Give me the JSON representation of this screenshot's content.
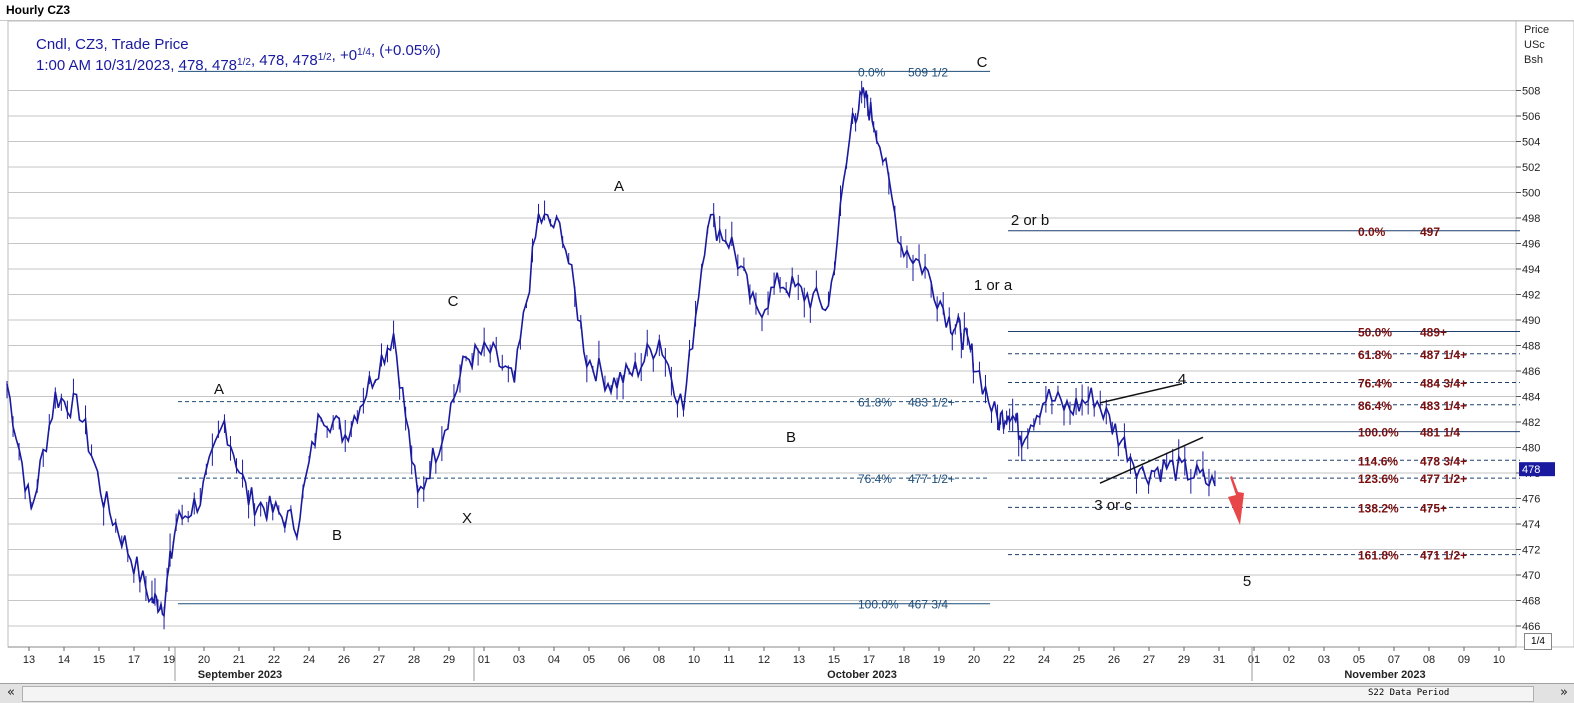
{
  "window": {
    "title": "Hourly CZ3"
  },
  "colors": {
    "series": "#1a1aa0",
    "fib_blue": "#1f4e79",
    "fib_red": "#7b0f0f",
    "grid": "#c6c6c6",
    "arrow": "#e8474a",
    "price_tag_bg": "#1a1aa0"
  },
  "info": {
    "line1": "Cndl, CZ3, Trade Price",
    "line2_time": "1:00 AM 10/31/2023, ",
    "ohlc": [
      {
        "int": "478",
        "frac": ""
      },
      {
        "int": "478",
        "frac": "1/2"
      },
      {
        "int": "478",
        "frac": ""
      },
      {
        "int": "478",
        "frac": "1/2"
      }
    ],
    "change_int": "+0",
    "change_frac": "1/4",
    "change_pct": "(+0.05%)"
  },
  "axis": {
    "units": [
      "Price",
      "USc",
      "Bsh"
    ],
    "last_price_tag": "478",
    "zoom": "1/4",
    "scrollbar_left": "«",
    "scrollbar_right": "»",
    "scrollbar_caption": "S22 Data Period"
  },
  "chart_data": {
    "type": "candlestick",
    "title": "Hourly CZ3",
    "ylim": [
      465,
      512
    ],
    "yticks": [
      466,
      468,
      470,
      472,
      474,
      476,
      478,
      480,
      482,
      484,
      486,
      488,
      490,
      492,
      494,
      496,
      498,
      500,
      502,
      504,
      506,
      508
    ],
    "grid": "horizontal",
    "x_ticks": [
      "13",
      "14",
      "15",
      "17",
      "19",
      "20",
      "21",
      "22",
      "24",
      "26",
      "27",
      "28",
      "29",
      "01",
      "03",
      "04",
      "05",
      "06",
      "08",
      "10",
      "11",
      "12",
      "13",
      "15",
      "17",
      "18",
      "19",
      "20",
      "22",
      "24",
      "25",
      "26",
      "27",
      "29",
      "31",
      "01",
      "02",
      "03",
      "05",
      "07",
      "08",
      "09",
      "10"
    ],
    "x_months": [
      "September 2023",
      "October 2023",
      "November 2023"
    ],
    "close_path_x_day": [
      0,
      1,
      2,
      3,
      4,
      5,
      6,
      6.5,
      7,
      8,
      9,
      10,
      11,
      12,
      13,
      14,
      15,
      16,
      17,
      18,
      19,
      20,
      21,
      22,
      23,
      24,
      25,
      26,
      27,
      28,
      29,
      30,
      31,
      32,
      33,
      34,
      35,
      35.5,
      36,
      37,
      38,
      39,
      39.5,
      40,
      41,
      41.5,
      42,
      43,
      44,
      45,
      46,
      47,
      48,
      49,
      50
    ],
    "close_path_price": [
      485,
      475,
      484,
      483,
      476,
      472,
      468,
      467.8,
      474,
      476,
      482,
      476,
      475,
      474,
      483,
      481,
      485,
      489,
      476,
      481,
      487,
      487.5,
      485,
      498,
      497,
      487,
      485,
      486,
      488.5,
      483,
      498,
      496,
      490.5,
      493,
      492,
      491,
      506,
      507.5,
      505,
      496,
      494,
      490,
      489,
      487,
      482,
      483,
      481,
      484,
      483,
      484,
      481,
      478,
      478.5,
      478,
      477
    ],
    "fib_levels_blue": [
      {
        "label": "0.0%",
        "value_text": "509 1/2",
        "price": 509.5,
        "style": "solid"
      },
      {
        "label": "61.8%",
        "value_text": "483 1/2+",
        "price": 483.6,
        "style": "dashed"
      },
      {
        "label": "76.4%",
        "value_text": "477 1/2+",
        "price": 477.6,
        "style": "dashed"
      },
      {
        "label": "100.0%",
        "value_text": "467 3/4",
        "price": 467.75,
        "style": "solid"
      }
    ],
    "fib_levels_red": [
      {
        "label": "0.0%",
        "value_text": "497",
        "price": 497,
        "style": "solid"
      },
      {
        "label": "50.0%",
        "value_text": "489+",
        "price": 489.1,
        "style": "solid"
      },
      {
        "label": "61.8%",
        "value_text": "487 1/4+",
        "price": 487.35,
        "style": "dashed"
      },
      {
        "label": "76.4%",
        "value_text": "484 3/4+",
        "price": 485.1,
        "style": "dashed"
      },
      {
        "label": "86.4%",
        "value_text": "483 1/4+",
        "price": 483.35,
        "style": "dashed"
      },
      {
        "label": "100.0%",
        "value_text": "481 1/4",
        "price": 481.25,
        "style": "solid"
      },
      {
        "label": "114.6%",
        "value_text": "478 3/4+",
        "price": 479.0,
        "style": "dashed"
      },
      {
        "label": "123.6%",
        "value_text": "477 1/2+",
        "price": 477.6,
        "style": "dashed"
      },
      {
        "label": "138.2%",
        "value_text": "475+",
        "price": 475.3,
        "style": "dashed"
      },
      {
        "label": "161.8%",
        "value_text": "471 1/2+",
        "price": 471.6,
        "style": "dashed"
      }
    ],
    "wave_labels": [
      "A",
      "B",
      "C",
      "X",
      "A",
      "B",
      "C",
      "1 or a",
      "2 or b",
      "3 or c",
      "4",
      "5"
    ],
    "annotations": [
      "rising wedge",
      "red down arrow"
    ]
  }
}
